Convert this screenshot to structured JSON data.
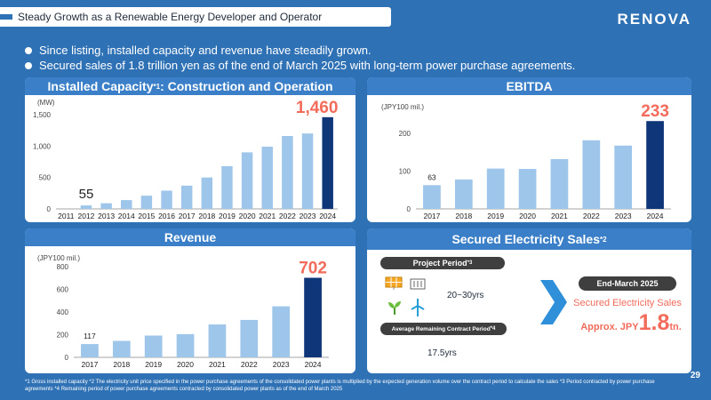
{
  "header": {
    "title": "Steady Growth as a Renewable Energy Developer and Operator",
    "logo": "RENOVA"
  },
  "bullets": [
    "Since listing, installed capacity and revenue have steadily grown.",
    "Secured sales of 1.8 trillion yen as of the end of March 2025 with long-term power purchase agreements."
  ],
  "colors": {
    "bar_light": "#9ec5ea",
    "bar_dark": "#10367a",
    "callout": "#f26b5b",
    "panel_header": "#3a7fc7"
  },
  "chart_data": [
    {
      "type": "bar",
      "title": "Installed Capacity",
      "title_sup": "*1",
      "title_suffix": ": Construction and Operation",
      "ylabel": "(MW)",
      "ylim": [
        0,
        1500
      ],
      "yticks": [
        0,
        500,
        1000,
        1500
      ],
      "ytick_labels": [
        "0",
        "500",
        "1,000",
        "1,500"
      ],
      "categories": [
        "2011",
        "2012",
        "2013",
        "2014",
        "2015",
        "2016",
        "2017",
        "2018",
        "2019",
        "2020",
        "2021",
        "2022",
        "2023",
        "2024"
      ],
      "values": [
        0,
        55,
        90,
        140,
        210,
        290,
        370,
        500,
        680,
        900,
        990,
        1160,
        1200,
        1460
      ],
      "start_label": "55",
      "end_label": "1,460"
    },
    {
      "type": "bar",
      "title": "EBITDA",
      "ylabel": "(JPY100 mil.)",
      "ylim": [
        0,
        250
      ],
      "yticks": [
        0,
        100,
        200
      ],
      "ytick_labels": [
        "0",
        "100",
        "200"
      ],
      "categories": [
        "2017",
        "2018",
        "2019",
        "2020",
        "2021",
        "2022",
        "2023",
        "2024"
      ],
      "values": [
        63,
        78,
        107,
        106,
        132,
        182,
        168,
        233
      ],
      "start_label": "63",
      "end_label": "233"
    },
    {
      "type": "bar",
      "title": "Revenue",
      "ylabel": "(JPY100 mil.)",
      "ylim": [
        0,
        800
      ],
      "yticks": [
        0,
        200,
        400,
        600,
        800
      ],
      "ytick_labels": [
        "0",
        "200",
        "400",
        "600",
        "800"
      ],
      "categories": [
        "2017",
        "2018",
        "2019",
        "2020",
        "2021",
        "2022",
        "2023",
        "2024"
      ],
      "values": [
        117,
        145,
        192,
        205,
        290,
        330,
        450,
        702
      ],
      "start_label": "117",
      "end_label": "702"
    }
  ],
  "sales": {
    "title": "Secured Electricity Sales",
    "title_sup": "*2",
    "project_period_label": "Project Period",
    "project_period_sup": "*3",
    "project_period_value": "20~30yrs",
    "remaining_label": "Average Remaining Contract Period",
    "remaining_sup": "*4",
    "remaining_value": "17.5yrs",
    "end_march": "End-March 2025",
    "sales_label": "Secured Electricity Sales",
    "approx": "Approx. JPY",
    "amount": "1.8",
    "unit": "tn."
  },
  "footnote": "*1 Gross installed capacity *2 The electricity unit price specified in the power purchase agreements of the consolidated power plants is multiplied by the expected generation volume over the contract period to calculate the sales *3 Period contracted by power purchase agreements *4 Remaining period of power purchase agreements contracted by consolidated power plants as of the end of March 2025",
  "page_number": "29"
}
